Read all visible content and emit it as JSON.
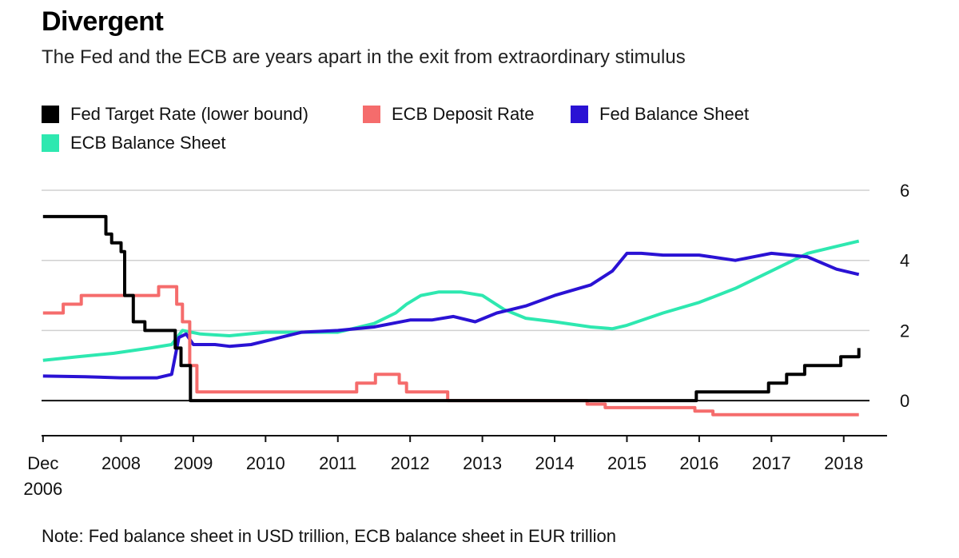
{
  "header": {
    "title": "Divergent",
    "subtitle": "The Fed and the ECB are years apart in the exit from extraordinary stimulus"
  },
  "note": "Note: Fed balance sheet in USD trillion, ECB balance sheet in EUR trillion",
  "chart_data": {
    "type": "line",
    "title": "Divergent",
    "subtitle": "The Fed and the ECB are years apart in the exit from extraordinary stimulus",
    "xlabel": "",
    "ylabel": "",
    "xlim": [
      2006.9,
      2018.6
    ],
    "ylim": [
      -1,
      6
    ],
    "y_ticks": [
      0,
      2,
      4,
      6
    ],
    "y_axis_position": "right",
    "grid": "horizontal",
    "legend_position": "top-left",
    "x_ticks": [
      {
        "x": 2006.92,
        "label": "Dec",
        "label2": "2006"
      },
      {
        "x": 2008.0,
        "label": "2008"
      },
      {
        "x": 2009.0,
        "label": "2009"
      },
      {
        "x": 2010.0,
        "label": "2010"
      },
      {
        "x": 2011.0,
        "label": "2011"
      },
      {
        "x": 2012.0,
        "label": "2012"
      },
      {
        "x": 2013.0,
        "label": "2013"
      },
      {
        "x": 2014.0,
        "label": "2014"
      },
      {
        "x": 2015.0,
        "label": "2015"
      },
      {
        "x": 2016.0,
        "label": "2016"
      },
      {
        "x": 2017.0,
        "label": "2017"
      },
      {
        "x": 2018.0,
        "label": "2018"
      }
    ],
    "series": [
      {
        "name": "Fed Target Rate (lower bound)",
        "color": "#000000",
        "step": true,
        "x": [
          2006.92,
          2007.71,
          2007.79,
          2007.87,
          2008.0,
          2008.05,
          2008.09,
          2008.17,
          2008.33,
          2008.75,
          2008.83,
          2008.96,
          2015.96,
          2016.96,
          2017.21,
          2017.46,
          2017.96,
          2018.21
        ],
        "y": [
          5.25,
          5.25,
          4.75,
          4.5,
          4.25,
          3.0,
          3.0,
          2.25,
          2.0,
          1.5,
          1.0,
          0.0,
          0.25,
          0.5,
          0.75,
          1.0,
          1.25,
          1.5
        ]
      },
      {
        "name": "ECB Deposit Rate",
        "color": "#f56c6c",
        "step": true,
        "x": [
          2006.92,
          2007.2,
          2007.45,
          2008.52,
          2008.77,
          2008.85,
          2008.95,
          2009.05,
          2011.26,
          2011.52,
          2011.85,
          2011.95,
          2012.52,
          2014.45,
          2014.7,
          2015.94,
          2016.19,
          2018.21
        ],
        "y": [
          2.5,
          2.75,
          3.0,
          3.25,
          2.75,
          2.25,
          1.0,
          0.25,
          0.5,
          0.75,
          0.5,
          0.25,
          0.0,
          -0.1,
          -0.2,
          -0.3,
          -0.4,
          -0.4
        ]
      },
      {
        "name": "Fed Balance Sheet",
        "color": "#2a12d4",
        "step": false,
        "x": [
          2006.92,
          2007.5,
          2008.0,
          2008.5,
          2008.7,
          2008.8,
          2008.9,
          2009.0,
          2009.3,
          2009.5,
          2009.8,
          2010.2,
          2010.5,
          2011.0,
          2011.5,
          2012.0,
          2012.3,
          2012.6,
          2012.9,
          2013.2,
          2013.6,
          2014.0,
          2014.5,
          2014.8,
          2015.0,
          2015.2,
          2015.5,
          2016.0,
          2016.5,
          2017.0,
          2017.5,
          2017.9,
          2018.21
        ],
        "y": [
          0.7,
          0.68,
          0.65,
          0.65,
          0.75,
          1.8,
          1.9,
          1.6,
          1.6,
          1.55,
          1.6,
          1.8,
          1.95,
          2.0,
          2.1,
          2.3,
          2.3,
          2.4,
          2.25,
          2.5,
          2.7,
          3.0,
          3.3,
          3.7,
          4.2,
          4.2,
          4.15,
          4.15,
          4.0,
          4.2,
          4.1,
          3.75,
          3.6
        ]
      },
      {
        "name": "ECB Balance Sheet",
        "color": "#2ee8b0",
        "step": false,
        "x": [
          2006.92,
          2007.4,
          2007.9,
          2008.4,
          2008.7,
          2008.85,
          2009.1,
          2009.5,
          2010.0,
          2010.5,
          2011.0,
          2011.5,
          2011.8,
          2011.95,
          2012.15,
          2012.4,
          2012.7,
          2013.0,
          2013.3,
          2013.6,
          2014.0,
          2014.5,
          2014.8,
          2015.0,
          2015.5,
          2016.0,
          2016.5,
          2017.0,
          2017.5,
          2017.9,
          2018.21
        ],
        "y": [
          1.15,
          1.25,
          1.35,
          1.5,
          1.6,
          2.0,
          1.9,
          1.85,
          1.95,
          1.95,
          1.95,
          2.2,
          2.5,
          2.75,
          3.0,
          3.1,
          3.1,
          3.0,
          2.6,
          2.35,
          2.25,
          2.1,
          2.05,
          2.15,
          2.5,
          2.8,
          3.2,
          3.7,
          4.2,
          4.4,
          4.55
        ]
      }
    ]
  }
}
